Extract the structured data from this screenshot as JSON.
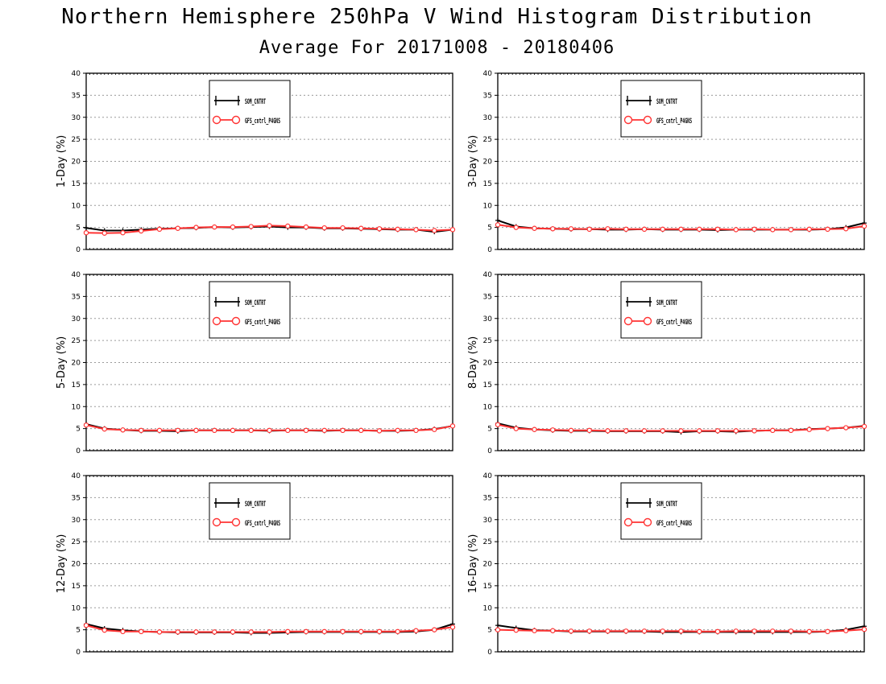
{
  "title": "Northern Hemisphere 250hPa V Wind Histogram Distribution",
  "subtitle": "Average For 20171008 - 20180406",
  "colors": {
    "series1": "#000000",
    "series2": "#ff3333",
    "grid": "#9a9a9a"
  },
  "chart_data": [
    {
      "type": "line",
      "ylabel": "1-Day (%)",
      "ylim": [
        0,
        40
      ],
      "yticks": [
        "0",
        "5",
        "10",
        "15",
        "20",
        "25",
        "30",
        "35",
        "40"
      ],
      "grid": true,
      "legend_position": "top-left",
      "x": [
        0,
        1,
        2,
        3,
        4,
        5,
        6,
        7,
        8,
        9,
        10,
        11,
        12,
        13,
        14,
        15,
        16,
        17,
        18,
        19,
        20
      ],
      "series": [
        {
          "name": "SOM_CNTRT",
          "marker": "plus",
          "values": [
            4.9,
            4.3,
            4.3,
            4.5,
            4.7,
            4.8,
            4.9,
            5.1,
            5.0,
            5.1,
            5.2,
            5.0,
            5.0,
            4.8,
            4.8,
            4.7,
            4.6,
            4.5,
            4.5,
            4.0,
            4.5
          ]
        },
        {
          "name": "GFS_cntrl_P4GNS",
          "marker": "circle",
          "values": [
            3.8,
            3.7,
            3.8,
            4.2,
            4.6,
            4.8,
            5.0,
            5.1,
            5.1,
            5.2,
            5.4,
            5.3,
            5.1,
            4.9,
            4.9,
            4.8,
            4.7,
            4.6,
            4.5,
            4.3,
            4.5
          ]
        }
      ]
    },
    {
      "type": "line",
      "ylabel": "3-Day (%)",
      "ylim": [
        0,
        40
      ],
      "yticks": [
        "0",
        "5",
        "10",
        "15",
        "20",
        "25",
        "30",
        "35",
        "40"
      ],
      "grid": true,
      "legend_position": "top-left",
      "x": [
        0,
        1,
        2,
        3,
        4,
        5,
        6,
        7,
        8,
        9,
        10,
        11,
        12,
        13,
        14,
        15,
        16,
        17,
        18,
        19,
        20
      ],
      "series": [
        {
          "name": "SOM_CNTRT",
          "marker": "plus",
          "values": [
            6.6,
            5.2,
            4.8,
            4.7,
            4.6,
            4.6,
            4.5,
            4.5,
            4.6,
            4.5,
            4.5,
            4.5,
            4.4,
            4.5,
            4.5,
            4.5,
            4.5,
            4.5,
            4.6,
            5.0,
            6.0
          ]
        },
        {
          "name": "GFS_cntrl_P4GNS",
          "marker": "circle",
          "values": [
            5.6,
            5.0,
            4.8,
            4.7,
            4.7,
            4.6,
            4.7,
            4.6,
            4.6,
            4.6,
            4.6,
            4.6,
            4.6,
            4.5,
            4.6,
            4.5,
            4.5,
            4.6,
            4.6,
            4.7,
            5.3
          ]
        }
      ]
    },
    {
      "type": "line",
      "ylabel": "5-Day (%)",
      "ylim": [
        0,
        40
      ],
      "yticks": [
        "0",
        "5",
        "10",
        "15",
        "20",
        "25",
        "30",
        "35",
        "40"
      ],
      "grid": true,
      "legend_position": "top-left",
      "x": [
        0,
        1,
        2,
        3,
        4,
        5,
        6,
        7,
        8,
        9,
        10,
        11,
        12,
        13,
        14,
        15,
        16,
        17,
        18,
        19,
        20
      ],
      "series": [
        {
          "name": "SOM_CNTRT",
          "marker": "plus",
          "values": [
            6.0,
            5.0,
            4.7,
            4.5,
            4.5,
            4.4,
            4.6,
            4.6,
            4.6,
            4.6,
            4.5,
            4.6,
            4.6,
            4.5,
            4.6,
            4.6,
            4.5,
            4.5,
            4.6,
            4.9,
            5.6
          ]
        },
        {
          "name": "GFS_cntrl_P4GNS",
          "marker": "circle",
          "values": [
            5.8,
            4.9,
            4.7,
            4.6,
            4.6,
            4.6,
            4.6,
            4.6,
            4.6,
            4.6,
            4.6,
            4.6,
            4.6,
            4.6,
            4.6,
            4.6,
            4.5,
            4.6,
            4.6,
            4.8,
            5.6
          ]
        }
      ]
    },
    {
      "type": "line",
      "ylabel": "8-Day (%)",
      "ylim": [
        0,
        40
      ],
      "yticks": [
        "0",
        "5",
        "10",
        "15",
        "20",
        "25",
        "30",
        "35",
        "40"
      ],
      "grid": true,
      "legend_position": "top-left",
      "x": [
        0,
        1,
        2,
        3,
        4,
        5,
        6,
        7,
        8,
        9,
        10,
        11,
        12,
        13,
        14,
        15,
        16,
        17,
        18,
        19,
        20
      ],
      "series": [
        {
          "name": "SOM_CNTRT",
          "marker": "plus",
          "values": [
            6.2,
            5.2,
            4.8,
            4.6,
            4.5,
            4.5,
            4.4,
            4.4,
            4.4,
            4.4,
            4.2,
            4.4,
            4.4,
            4.3,
            4.5,
            4.6,
            4.6,
            4.9,
            5.0,
            5.2,
            5.6
          ]
        },
        {
          "name": "GFS_cntrl_P4GNS",
          "marker": "circle",
          "values": [
            5.9,
            5.0,
            4.8,
            4.7,
            4.6,
            4.6,
            4.5,
            4.5,
            4.5,
            4.5,
            4.5,
            4.5,
            4.5,
            4.5,
            4.5,
            4.6,
            4.6,
            4.8,
            5.0,
            5.2,
            5.5
          ]
        }
      ]
    },
    {
      "type": "line",
      "ylabel": "12-Day (%)",
      "ylim": [
        0,
        40
      ],
      "yticks": [
        "0",
        "5",
        "10",
        "15",
        "20",
        "25",
        "30",
        "35",
        "40"
      ],
      "grid": true,
      "legend_position": "top-left",
      "x": [
        0,
        1,
        2,
        3,
        4,
        5,
        6,
        7,
        8,
        9,
        10,
        11,
        12,
        13,
        14,
        15,
        16,
        17,
        18,
        19,
        20
      ],
      "series": [
        {
          "name": "SOM_CNTRT",
          "marker": "plus",
          "values": [
            6.3,
            5.3,
            4.9,
            4.6,
            4.5,
            4.4,
            4.4,
            4.4,
            4.4,
            4.3,
            4.3,
            4.4,
            4.5,
            4.5,
            4.5,
            4.5,
            4.5,
            4.5,
            4.6,
            5.0,
            6.3
          ]
        },
        {
          "name": "GFS_cntrl_P4GNS",
          "marker": "circle",
          "values": [
            6.0,
            4.9,
            4.6,
            4.6,
            4.5,
            4.5,
            4.5,
            4.5,
            4.5,
            4.5,
            4.5,
            4.6,
            4.6,
            4.6,
            4.6,
            4.6,
            4.6,
            4.6,
            4.8,
            5.0,
            5.6
          ]
        }
      ]
    },
    {
      "type": "line",
      "ylabel": "16-Day (%)",
      "ylim": [
        0,
        40
      ],
      "yticks": [
        "0",
        "5",
        "10",
        "15",
        "20",
        "25",
        "30",
        "35",
        "40"
      ],
      "grid": true,
      "legend_position": "top-left",
      "x": [
        0,
        1,
        2,
        3,
        4,
        5,
        6,
        7,
        8,
        9,
        10,
        11,
        12,
        13,
        14,
        15,
        16,
        17,
        18,
        19,
        20
      ],
      "series": [
        {
          "name": "SOM_CNTRT",
          "marker": "plus",
          "values": [
            6.0,
            5.4,
            4.9,
            4.8,
            4.6,
            4.6,
            4.6,
            4.6,
            4.6,
            4.5,
            4.5,
            4.5,
            4.5,
            4.5,
            4.5,
            4.5,
            4.5,
            4.5,
            4.6,
            5.0,
            5.8
          ]
        },
        {
          "name": "GFS_cntrl_P4GNS",
          "marker": "circle",
          "values": [
            5.0,
            4.9,
            4.8,
            4.8,
            4.7,
            4.7,
            4.7,
            4.7,
            4.7,
            4.7,
            4.7,
            4.6,
            4.6,
            4.7,
            4.7,
            4.7,
            4.7,
            4.6,
            4.6,
            4.8,
            5.1
          ]
        }
      ]
    }
  ]
}
